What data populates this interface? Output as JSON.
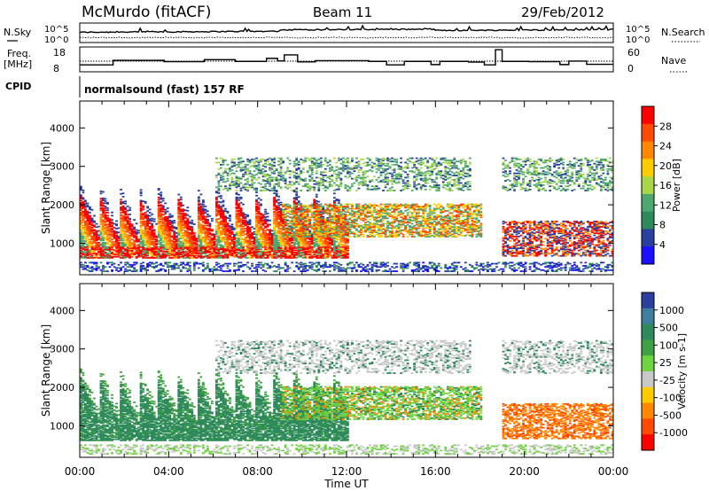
{
  "header": {
    "station": "McMurdo (fitACF)",
    "beam": "Beam 11",
    "date": "29/Feb/2012"
  },
  "noise_panel": {
    "left_label": "N.Sky",
    "right_label": "N.Search",
    "left_ticks": [
      "10^5",
      "10^0"
    ],
    "right_ticks": [
      "10^5",
      "10^0"
    ]
  },
  "freq_panel": {
    "left_label_1": "Freq.",
    "left_label_2": "[MHz]",
    "right_label": "Nave",
    "left_ticks": [
      "18",
      "8"
    ],
    "right_ticks": [
      "60",
      "0"
    ],
    "freq_steps": [
      {
        "t": 0.0,
        "v": 10.8
      },
      {
        "t": 1.5,
        "v": 12.6
      },
      {
        "t": 3.8,
        "v": 12.1
      },
      {
        "t": 5.6,
        "v": 12.9
      },
      {
        "t": 7.0,
        "v": 12.2
      },
      {
        "t": 8.4,
        "v": 13.4
      },
      {
        "t": 8.9,
        "v": 12.4
      },
      {
        "t": 9.2,
        "v": 14.8
      },
      {
        "t": 9.8,
        "v": 12.0
      },
      {
        "t": 10.6,
        "v": 12.5
      },
      {
        "t": 13.0,
        "v": 12.2
      },
      {
        "t": 13.8,
        "v": 10.8
      },
      {
        "t": 14.6,
        "v": 12.2
      },
      {
        "t": 15.8,
        "v": 10.9
      },
      {
        "t": 16.2,
        "v": 12.2
      },
      {
        "t": 17.5,
        "v": 11.9
      },
      {
        "t": 18.2,
        "v": 10.8
      },
      {
        "t": 18.7,
        "v": 16.9
      },
      {
        "t": 19.0,
        "v": 12.2
      },
      {
        "t": 20.2,
        "v": 12.1
      },
      {
        "t": 21.6,
        "v": 10.9
      },
      {
        "t": 22.0,
        "v": 12.3
      },
      {
        "t": 22.8,
        "v": 11.0
      },
      {
        "t": 24.0,
        "v": 11.0
      }
    ]
  },
  "cpid": {
    "label": "CPID",
    "program": "normalsound (fast) 157 RF"
  },
  "chart_data": [
    {
      "type": "heatmap",
      "name": "power",
      "ylabel": "Slant Range [km]",
      "xlabel": "",
      "x_ticks": [
        "00:00",
        "04:00",
        "08:00",
        "12:00",
        "16:00",
        "20:00",
        "00:00"
      ],
      "xlim_hours": [
        0,
        24
      ],
      "y_ticks": [
        1000,
        2000,
        3000,
        4000
      ],
      "ylim": [
        180,
        4700
      ],
      "colorbar": {
        "label": "Power [dB]",
        "ticks": [
          "28",
          "24",
          "20",
          "16",
          "12",
          "8",
          "4"
        ],
        "colors": [
          "#ff0000",
          "#ff4a00",
          "#ff8800",
          "#ffcc00",
          "#a8d84a",
          "#4ea86e",
          "#2e8a5c",
          "#2a3f9e",
          "#1a10ff"
        ]
      }
    },
    {
      "type": "heatmap",
      "name": "velocity",
      "ylabel": "Slant Range [km]",
      "xlabel": "Time UT",
      "x_ticks": [
        "00:00",
        "04:00",
        "08:00",
        "12:00",
        "16:00",
        "20:00",
        "00:00"
      ],
      "xlim_hours": [
        0,
        24
      ],
      "y_ticks": [
        1000,
        2000,
        3000,
        4000
      ],
      "ylim": [
        180,
        4700
      ],
      "colorbar": {
        "label": "Velocity [m s-1]",
        "ticks": [
          "1000",
          "500",
          "100",
          "25",
          "-25",
          "-100",
          "-500",
          "-1000"
        ],
        "colors": [
          "#2a3f9e",
          "#3f7e9e",
          "#2e8a5c",
          "#3fa044",
          "#6ed43f",
          "#c8c8c8",
          "#ffcc00",
          "#ff8800",
          "#ff4a00",
          "#ff0000"
        ]
      }
    }
  ]
}
